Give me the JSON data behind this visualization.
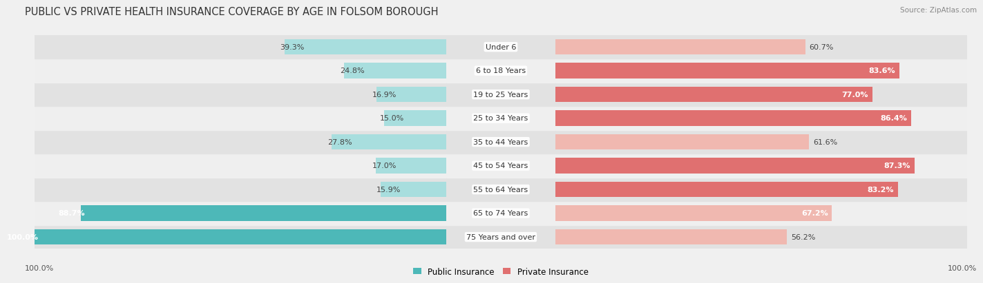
{
  "title": "Public vs Private Health Insurance Coverage by Age in Folsom borough",
  "title_display": "PUBLIC VS PRIVATE HEALTH INSURANCE COVERAGE BY AGE IN FOLSOM BOROUGH",
  "source": "Source: ZipAtlas.com",
  "categories": [
    "Under 6",
    "6 to 18 Years",
    "19 to 25 Years",
    "25 to 34 Years",
    "35 to 44 Years",
    "45 to 54 Years",
    "55 to 64 Years",
    "65 to 74 Years",
    "75 Years and over"
  ],
  "public_values": [
    39.3,
    24.8,
    16.9,
    15.0,
    27.8,
    17.0,
    15.9,
    88.7,
    100.0
  ],
  "private_values": [
    60.7,
    83.6,
    77.0,
    86.4,
    61.6,
    87.3,
    83.2,
    67.2,
    56.2
  ],
  "public_color_high": "#4db8b8",
  "public_color_low": "#a8dede",
  "private_color_high": "#e07070",
  "private_color_low": "#f0b8b0",
  "public_label": "Public Insurance",
  "private_label": "Private Insurance",
  "bg_color": "#f0f0f0",
  "row_color_dark": "#e2e2e2",
  "row_color_light": "#efefef",
  "xlim": 100.0,
  "title_fontsize": 10.5,
  "label_fontsize": 8,
  "value_fontsize": 8,
  "source_fontsize": 7.5,
  "axis_label": "100.0%"
}
